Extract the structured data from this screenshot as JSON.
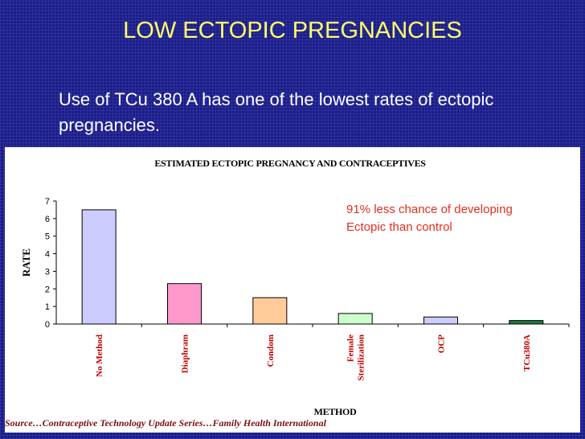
{
  "slide": {
    "title": "LOW ECTOPIC PREGNANCIES",
    "body": "Use of TCu 380 A has one of the lowest rates of ectopic pregnancies.",
    "source": "Source…Contraceptive Technology Update Series…Family Health International"
  },
  "colors": {
    "background": "#1b1d8c",
    "title": "#ffff66",
    "annotation": "#e0301e",
    "source": "#7a1010"
  },
  "chart_data": {
    "type": "bar",
    "title": "ESTIMATED ECTOPIC PREGNANCY AND CONTRACEPTIVES",
    "xlabel": "METHOD",
    "ylabel": "RATE",
    "ylim": [
      0,
      7
    ],
    "yticks": [
      "0",
      "1",
      "2",
      "3",
      "4",
      "5",
      "6",
      "7"
    ],
    "grid": false,
    "legend": "none",
    "categories": [
      "No Method",
      "Diaphram",
      "Condom",
      "Female Sterilization",
      "OCP",
      "TCu380A"
    ],
    "category_lines": [
      [
        "No Method"
      ],
      [
        "Diaphram"
      ],
      [
        "Condom"
      ],
      [
        "Female",
        "Sterilization"
      ],
      [
        "OCP"
      ],
      [
        "TCu380A"
      ]
    ],
    "values": [
      6.5,
      2.3,
      1.5,
      0.6,
      0.4,
      0.2
    ],
    "bar_colors": [
      "#ccccff",
      "#ff99cc",
      "#ffcc99",
      "#ccffcc",
      "#ccccff",
      "#1e7a3c"
    ],
    "annotation": [
      "91% less chance of developing",
      "Ectopic than control"
    ]
  }
}
